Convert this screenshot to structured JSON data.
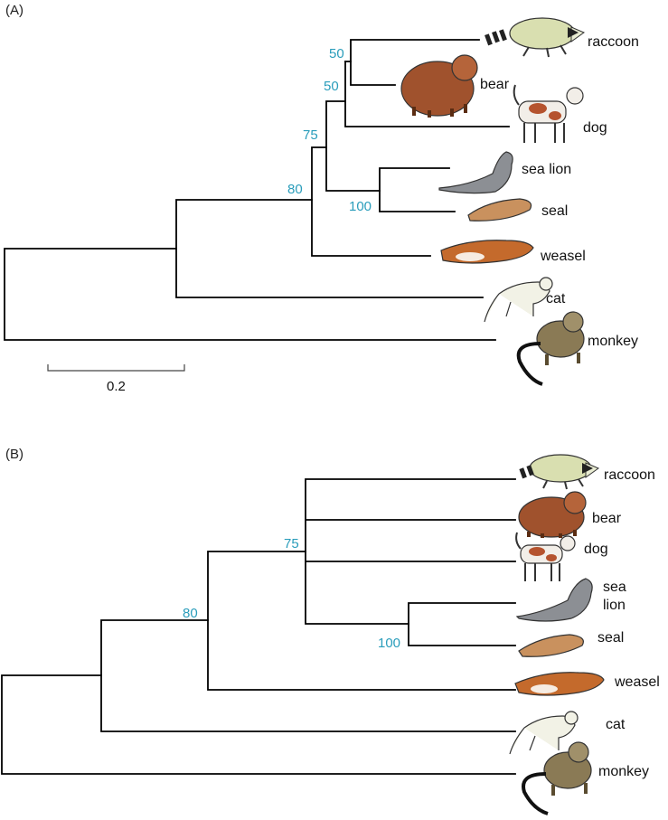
{
  "panels": [
    {
      "label": "(A)",
      "taxa": [
        "raccoon",
        "bear",
        "dog",
        "sea lion",
        "seal",
        "weasel",
        "cat",
        "monkey"
      ],
      "bootstrap": [
        "50",
        "50",
        "75",
        "80",
        "100"
      ],
      "scale_label": "0.2"
    },
    {
      "label": "(B)",
      "taxa": [
        "raccoon",
        "bear",
        "dog",
        "sea",
        "lion",
        "seal",
        "weasel",
        "cat",
        "monkey"
      ],
      "bootstrap": [
        "75",
        "80",
        "100"
      ]
    }
  ],
  "colors": {
    "branch": "#000000",
    "bootstrap": "#2a9dbb",
    "raccoon": "#d9dfb0",
    "bear": "#a0522d",
    "dog": "#b5532e",
    "sea_lion": "#8c8f94",
    "seal": "#c9915e",
    "weasel": "#c46a2c",
    "cat": "#f2f2e6",
    "monkey": "#8a7a55"
  },
  "icons": [
    "raccoon-icon",
    "bear-icon",
    "dog-icon",
    "sea-lion-icon",
    "seal-icon",
    "weasel-icon",
    "cat-icon",
    "monkey-icon"
  ]
}
